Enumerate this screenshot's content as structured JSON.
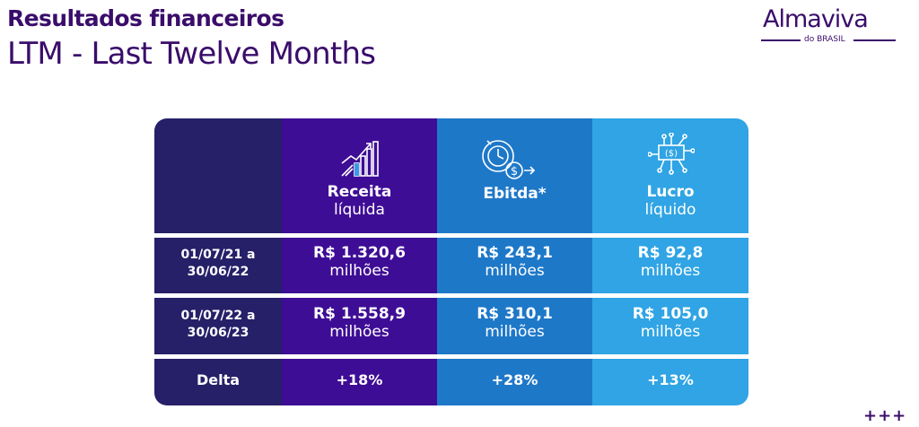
{
  "header": {
    "title": "Resultados financeiros",
    "subtitle": "LTM - Last Twelve Months"
  },
  "logo": {
    "name": "Almaviva",
    "sub": "do BRASIL"
  },
  "table": {
    "columns": [
      {
        "bold": "Receita",
        "normal": "líquida",
        "icon": "bar-chart-growth-icon"
      },
      {
        "bold": "Ebitda*",
        "normal": "",
        "icon": "clock-dollar-icon"
      },
      {
        "bold": "Lucro",
        "normal": "líquido",
        "icon": "circuit-banknote-icon"
      }
    ],
    "rows": [
      {
        "period_line1": "01/07/21 a",
        "period_line2": "30/06/22",
        "cells": [
          {
            "value": "R$ 1.320,6",
            "unit": "milhões"
          },
          {
            "value": "R$ 243,1",
            "unit": "milhões"
          },
          {
            "value": "R$ 92,8",
            "unit": "milhões"
          }
        ]
      },
      {
        "period_line1": "01/07/22 a",
        "period_line2": "30/06/23",
        "cells": [
          {
            "value": "R$ 1.558,9",
            "unit": "milhões"
          },
          {
            "value": "R$ 310,1",
            "unit": "milhões"
          },
          {
            "value": "R$ 105,0",
            "unit": "milhões"
          }
        ]
      }
    ],
    "delta": {
      "label": "Delta",
      "values": [
        "+18%",
        "+28%",
        "+13%"
      ]
    }
  },
  "footer": {
    "decoration": "+++"
  },
  "colors": {
    "brand_purple": "#3a0d6b",
    "col_label": "#262068",
    "col_receita": "#3e0d95",
    "col_ebitda": "#1e78c8",
    "col_lucro": "#30a4e4"
  }
}
